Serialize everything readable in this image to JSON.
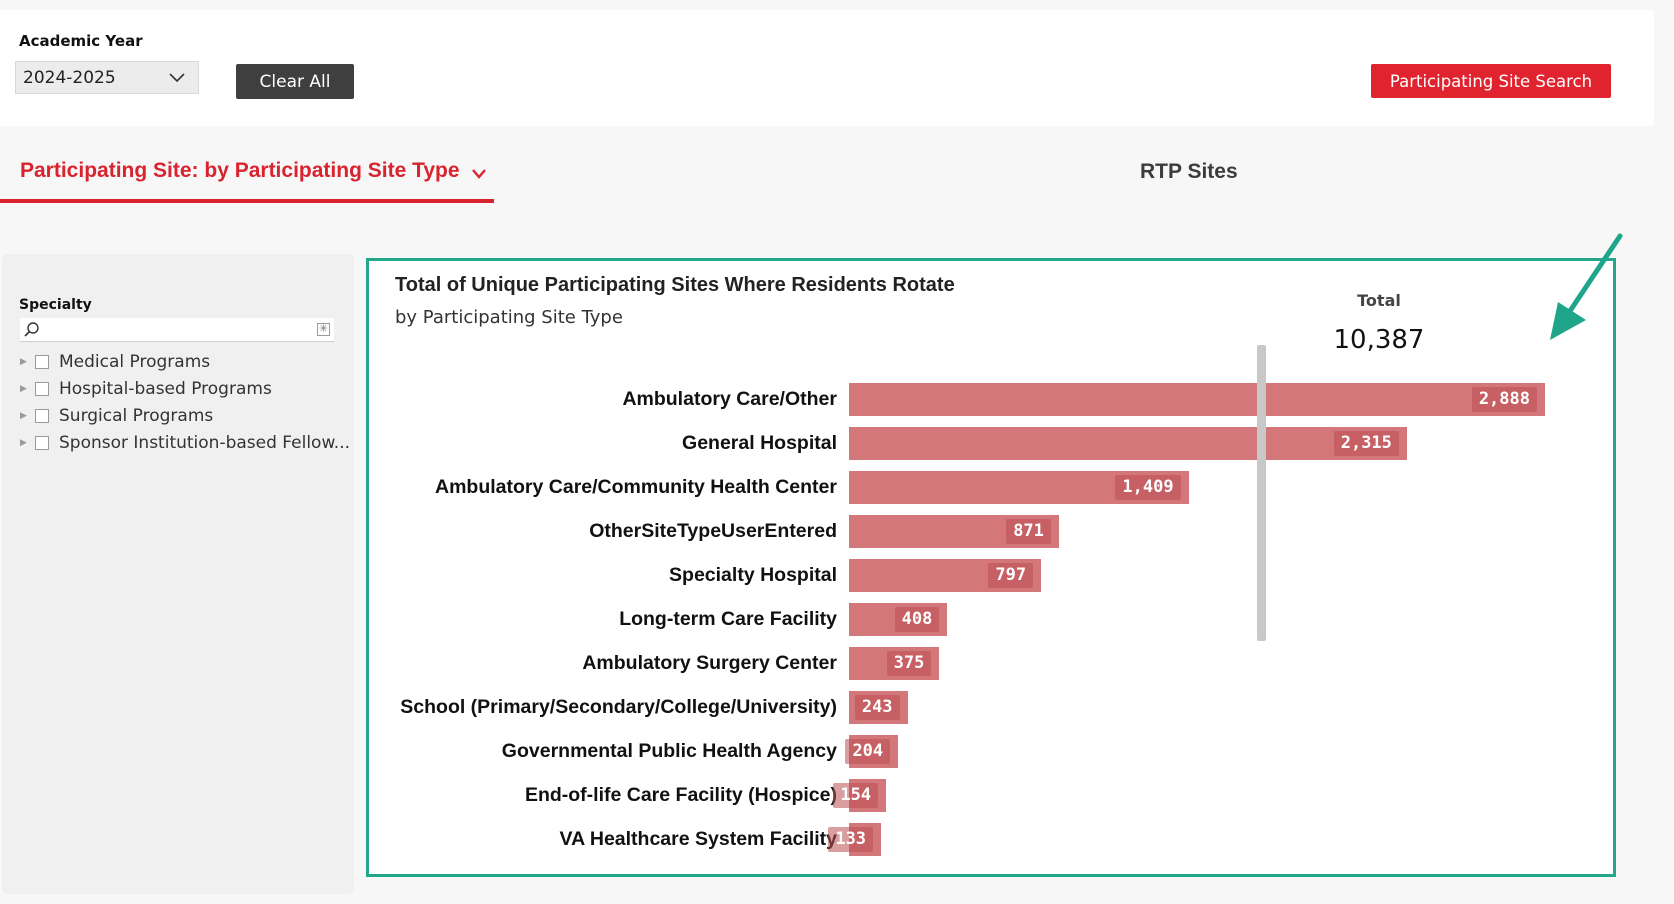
{
  "filters": {
    "academic_year_label": "Academic Year",
    "academic_year_value": "2024-2025",
    "clear_all_label": "Clear All",
    "site_search_label": "Participating Site Search"
  },
  "tabs": {
    "active_label": "Participating Site: by Participating Site Type",
    "rtp_label": "RTP Sites"
  },
  "specialty": {
    "label": "Specialty",
    "items": [
      {
        "label": "Medical Programs"
      },
      {
        "label": "Hospital-based Programs"
      },
      {
        "label": "Surgical Programs"
      },
      {
        "label": "Sponsor Institution-based Fellow..."
      }
    ]
  },
  "chart_data": {
    "type": "bar",
    "orientation": "horizontal",
    "title": "Total of Unique Participating Sites Where Residents Rotate",
    "subtitle": "by Participating Site Type",
    "total_label": "Total",
    "total_value": "10,387",
    "categories": [
      "Ambulatory Care/Other",
      "General Hospital",
      "Ambulatory Care/Community Health Center",
      "OtherSiteTypeUserEntered",
      "Specialty Hospital",
      "Long-term Care Facility",
      "Ambulatory Surgery Center",
      "School (Primary/Secondary/College/University)",
      "Governmental Public Health Agency",
      "End-of-life Care Facility (Hospice)",
      "VA Healthcare System Facility"
    ],
    "values": [
      2888,
      2315,
      1409,
      871,
      797,
      408,
      375,
      243,
      204,
      154,
      133
    ],
    "value_labels": [
      "2,888",
      "2,315",
      "1,409",
      "871",
      "797",
      "408",
      "375",
      "243",
      "204",
      "154",
      "133"
    ],
    "bar_color": "#d4777a"
  },
  "colors": {
    "accent_red": "#d9232e",
    "highlight_border": "#22a68c",
    "dark_button": "#3f3f3f"
  },
  "icons": {
    "dropdown": "chevron-down-icon",
    "search": "search-icon",
    "annotation": "arrow-icon"
  }
}
